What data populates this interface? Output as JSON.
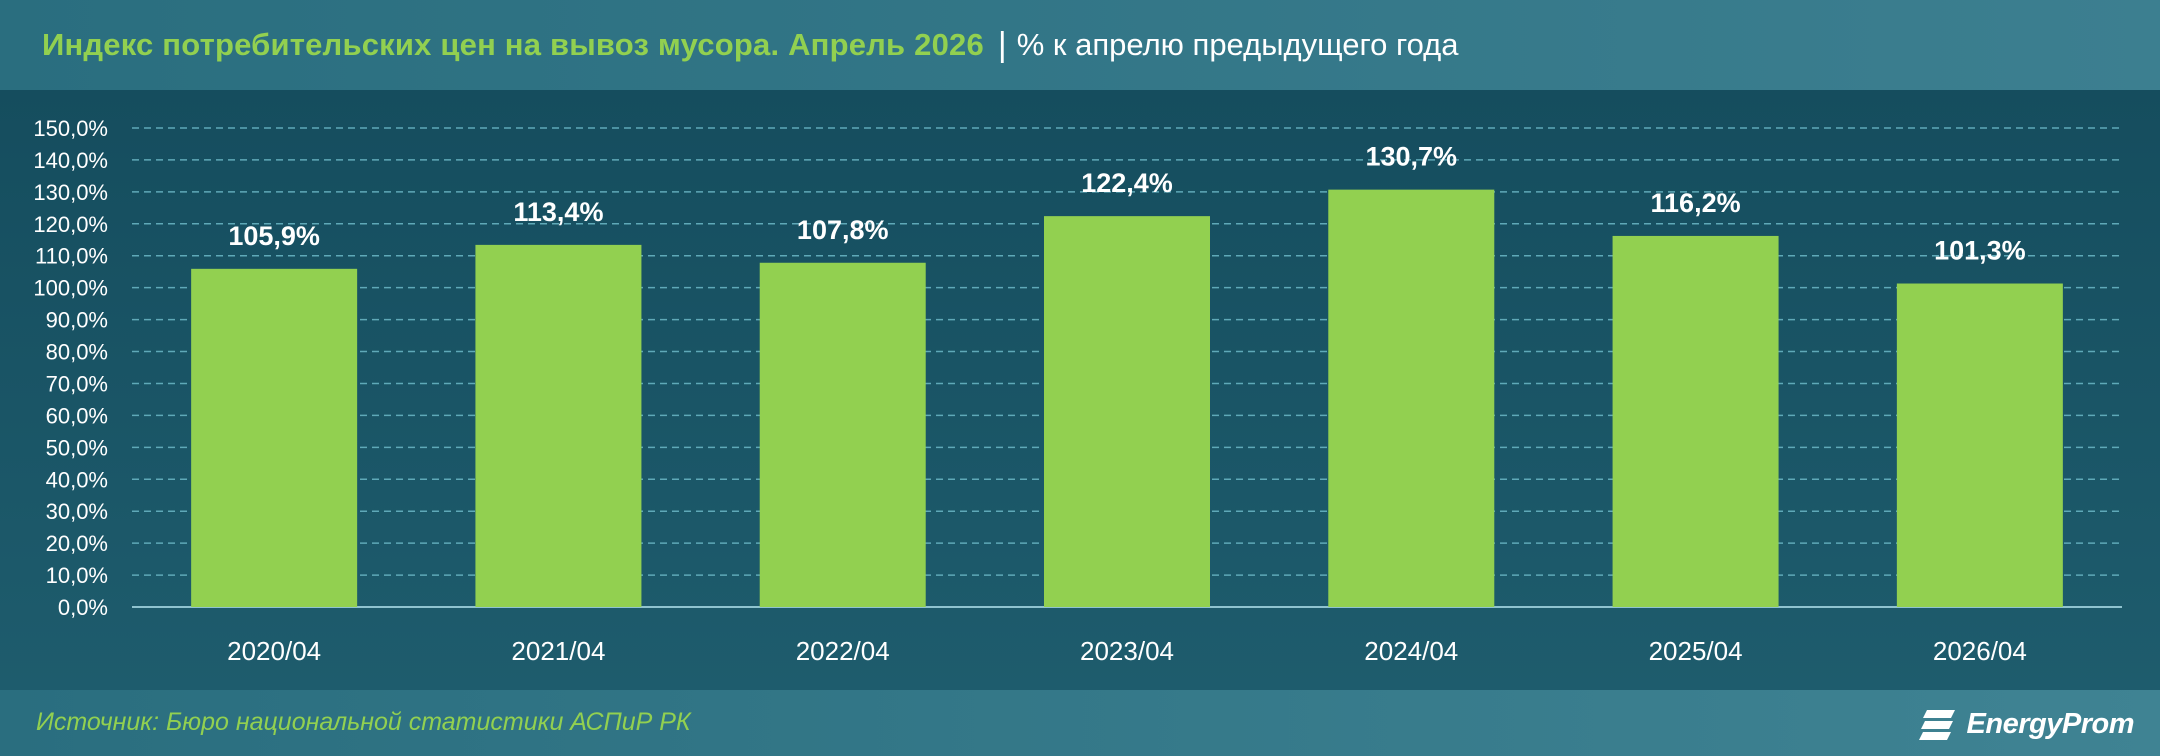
{
  "header": {
    "title": "Индекс потребительских цен на вывоз мусора. Апрель 2026",
    "separator": "|",
    "subtitle": "% к апрелю предыдущего года"
  },
  "footer": {
    "source": "Источник: Бюро национальной статистики АСПиР РК",
    "logo_text": "EnergyProm"
  },
  "colors": {
    "bar": "#92d050",
    "title_accent": "#92d050",
    "background": "#1d5a6b",
    "gridline": "#5fa9b8",
    "text": "#ffffff"
  },
  "chart_data": {
    "type": "bar",
    "categories": [
      "2020/04",
      "2021/04",
      "2022/04",
      "2023/04",
      "2024/04",
      "2025/04",
      "2026/04"
    ],
    "values": [
      105.9,
      113.4,
      107.8,
      122.4,
      130.7,
      116.2,
      101.3
    ],
    "value_labels": [
      "105,9%",
      "113,4%",
      "107,8%",
      "122,4%",
      "130,7%",
      "116,2%",
      "101,3%"
    ],
    "ylim": [
      0,
      150
    ],
    "ytick_step": 10,
    "ytick_labels": [
      "0,0%",
      "10,0%",
      "20,0%",
      "30,0%",
      "40,0%",
      "50,0%",
      "60,0%",
      "70,0%",
      "80,0%",
      "90,0%",
      "100,0%",
      "110,0%",
      "120,0%",
      "130,0%",
      "140,0%",
      "150,0%"
    ],
    "grid": true,
    "legend": "none"
  }
}
